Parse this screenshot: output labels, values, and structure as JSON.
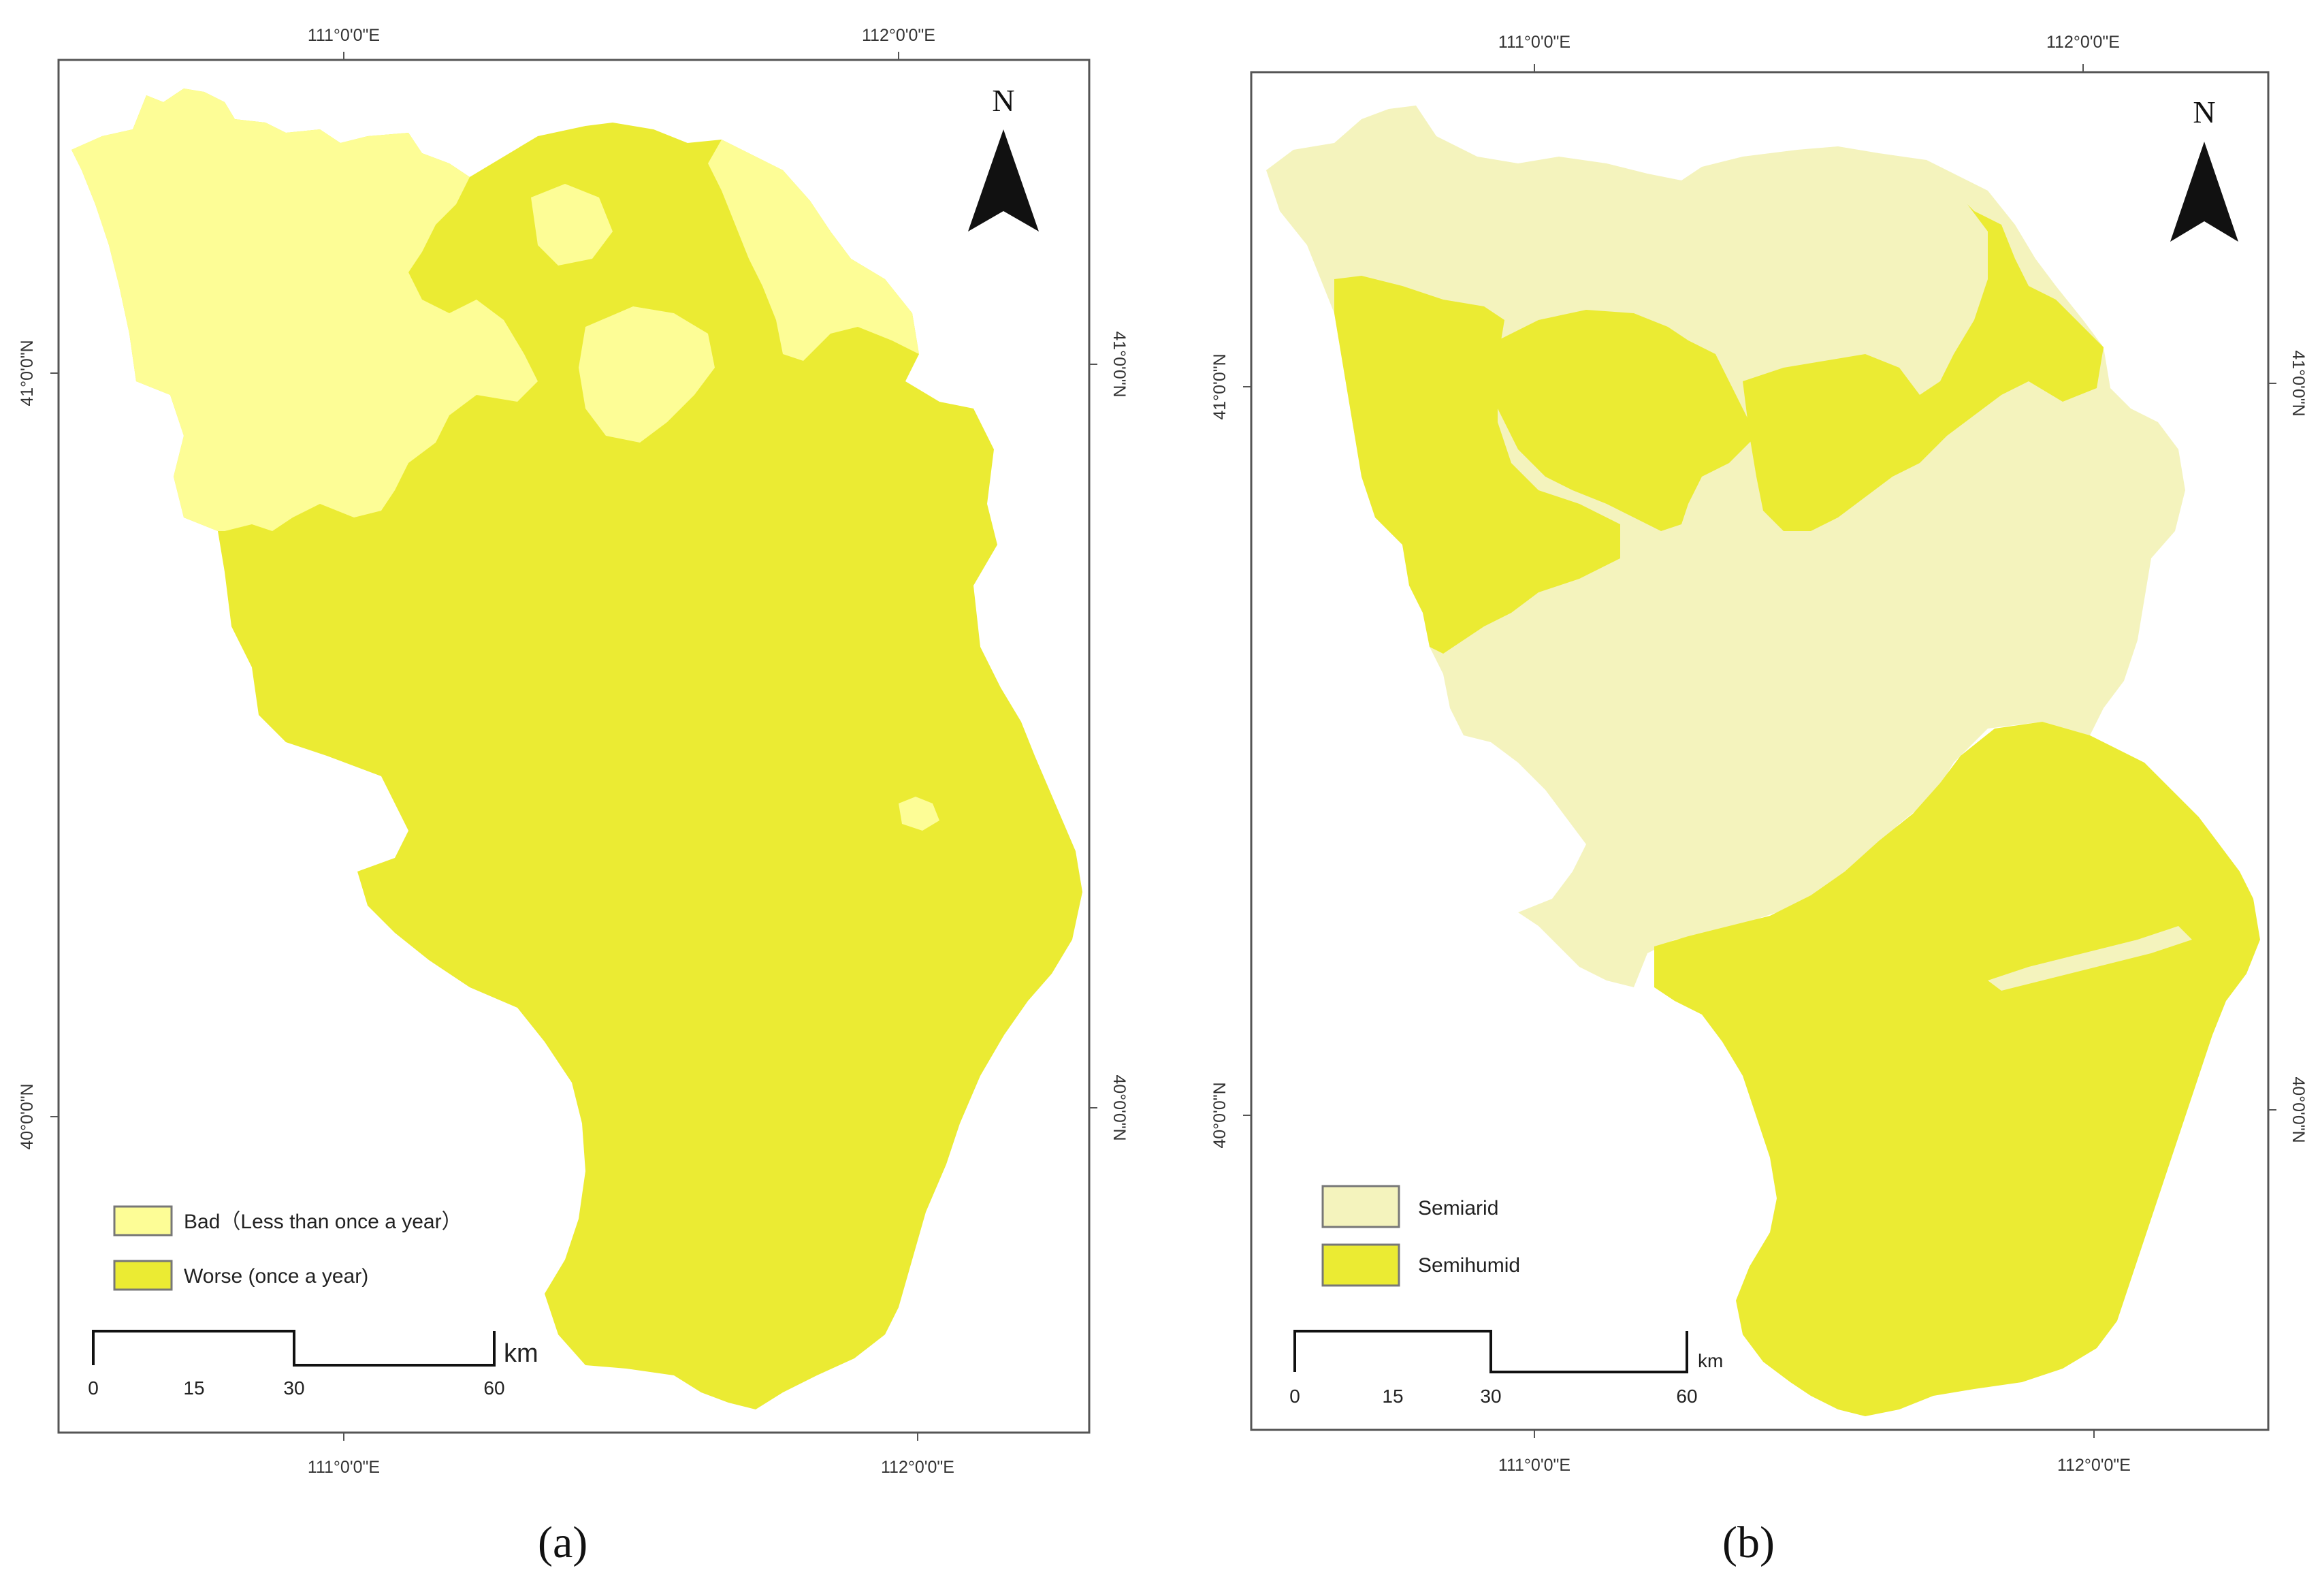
{
  "maps": [
    {
      "id": "a",
      "sublabel": "(a)",
      "north": "N",
      "lon_labels": [
        "111°0'0\"E",
        "112°0'0\"E"
      ],
      "lat_labels": [
        "41°0'0\"N",
        "40°0'0\"N"
      ],
      "legend": [
        {
          "label": "Bad（Less than once a year）",
          "color": "#fdfd96"
        },
        {
          "label": "Worse (once a year)",
          "color": "#ebeb33"
        }
      ],
      "scale": {
        "ticks": [
          "0",
          "15",
          "30",
          "60"
        ],
        "unit": "km"
      }
    },
    {
      "id": "b",
      "sublabel": "(b)",
      "north": "N",
      "lon_labels": [
        "111°0'0\"E",
        "112°0'0\"E"
      ],
      "lat_labels": [
        "41°0'0\"N",
        "40°0'0\"N"
      ],
      "legend": [
        {
          "label": "Semiarid",
          "color": "#f4f3bd"
        },
        {
          "label": "Semihumid",
          "color": "#ebeb33"
        }
      ],
      "scale": {
        "ticks": [
          "0",
          "15",
          "30",
          "60"
        ],
        "unit": "km"
      }
    }
  ]
}
